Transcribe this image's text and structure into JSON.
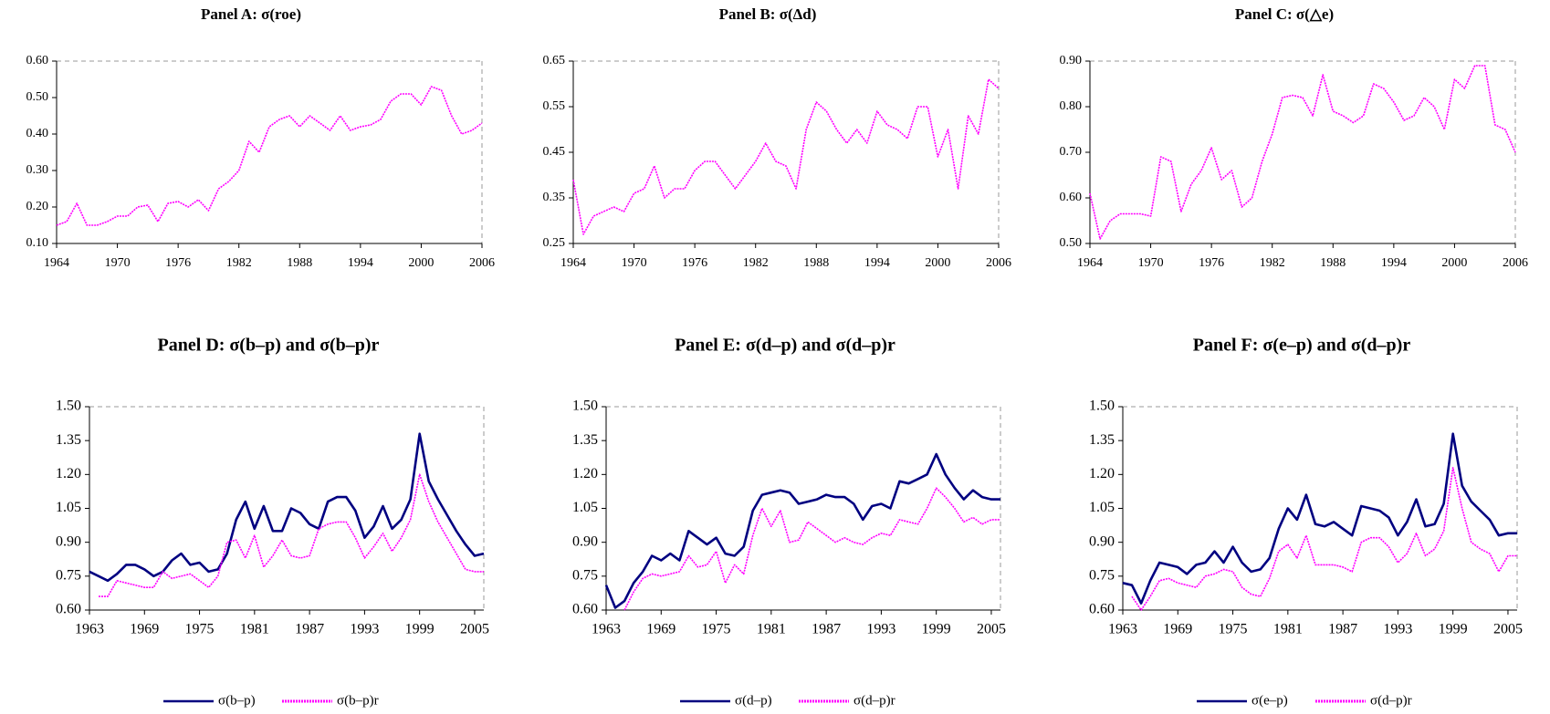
{
  "chart_data": [
    {
      "type": "line",
      "title": "Panel A: σ(roe)",
      "color": "#ff00ff",
      "dashed": true,
      "x": [
        1964,
        1965,
        1966,
        1967,
        1968,
        1969,
        1970,
        1971,
        1972,
        1973,
        1974,
        1975,
        1976,
        1977,
        1978,
        1979,
        1980,
        1981,
        1982,
        1983,
        1984,
        1985,
        1986,
        1987,
        1988,
        1989,
        1990,
        1991,
        1992,
        1993,
        1994,
        1995,
        1996,
        1997,
        1998,
        1999,
        2000,
        2001,
        2002,
        2003,
        2004,
        2005,
        2006
      ],
      "values": [
        0.15,
        0.16,
        0.21,
        0.15,
        0.15,
        0.16,
        0.175,
        0.175,
        0.2,
        0.205,
        0.16,
        0.21,
        0.215,
        0.2,
        0.22,
        0.19,
        0.25,
        0.27,
        0.3,
        0.38,
        0.35,
        0.42,
        0.44,
        0.45,
        0.42,
        0.45,
        0.43,
        0.41,
        0.45,
        0.41,
        0.42,
        0.425,
        0.44,
        0.49,
        0.51,
        0.51,
        0.48,
        0.53,
        0.52,
        0.45,
        0.4,
        0.41,
        0.43
      ],
      "xlim": [
        1964,
        2006
      ],
      "xticks": [
        1964,
        1970,
        1976,
        1982,
        1988,
        1994,
        2000,
        2006
      ],
      "ylim": [
        0.1,
        0.6
      ],
      "yticks": [
        {
          "value": 0.1,
          "label": "0.10"
        },
        {
          "value": 0.2,
          "label": "0.20"
        },
        {
          "value": 0.3,
          "label": "0.30"
        },
        {
          "value": 0.4,
          "label": "0.40"
        },
        {
          "value": 0.5,
          "label": "0.50"
        },
        {
          "value": 0.6,
          "label": "0.60"
        }
      ]
    },
    {
      "type": "line",
      "title": "Panel B: σ(Δd)",
      "color": "#ff00ff",
      "dashed": true,
      "x": [
        1964,
        1965,
        1966,
        1967,
        1968,
        1969,
        1970,
        1971,
        1972,
        1973,
        1974,
        1975,
        1976,
        1977,
        1978,
        1979,
        1980,
        1981,
        1982,
        1983,
        1984,
        1985,
        1986,
        1987,
        1988,
        1989,
        1990,
        1991,
        1992,
        1993,
        1994,
        1995,
        1996,
        1997,
        1998,
        1999,
        2000,
        2001,
        2002,
        2003,
        2004,
        2005,
        2006
      ],
      "values": [
        0.39,
        0.27,
        0.31,
        0.32,
        0.33,
        0.32,
        0.36,
        0.37,
        0.42,
        0.35,
        0.37,
        0.37,
        0.41,
        0.43,
        0.43,
        0.4,
        0.37,
        0.4,
        0.43,
        0.47,
        0.43,
        0.42,
        0.37,
        0.5,
        0.56,
        0.54,
        0.5,
        0.47,
        0.5,
        0.47,
        0.54,
        0.51,
        0.5,
        0.48,
        0.55,
        0.55,
        0.44,
        0.5,
        0.37,
        0.53,
        0.49,
        0.61,
        0.59
      ],
      "xlim": [
        1964,
        2006
      ],
      "xticks": [
        1964,
        1970,
        1976,
        1982,
        1988,
        1994,
        2000,
        2006
      ],
      "ylim": [
        0.25,
        0.65
      ],
      "yticks": [
        0.25,
        0.35,
        0.45,
        0.55,
        0.65
      ]
    },
    {
      "type": "line",
      "title": "Panel C: σ(△e)",
      "color": "#ff00ff",
      "dashed": true,
      "x": [
        1964,
        1965,
        1966,
        1967,
        1968,
        1969,
        1970,
        1971,
        1972,
        1973,
        1974,
        1975,
        1976,
        1977,
        1978,
        1979,
        1980,
        1981,
        1982,
        1983,
        1984,
        1985,
        1986,
        1987,
        1988,
        1989,
        1990,
        1991,
        1992,
        1993,
        1994,
        1995,
        1996,
        1997,
        1998,
        1999,
        2000,
        2001,
        2002,
        2003,
        2004,
        2005,
        2006
      ],
      "values": [
        0.61,
        0.51,
        0.55,
        0.565,
        0.565,
        0.565,
        0.56,
        0.69,
        0.68,
        0.57,
        0.63,
        0.66,
        0.71,
        0.64,
        0.66,
        0.58,
        0.6,
        0.68,
        0.74,
        0.82,
        0.825,
        0.82,
        0.78,
        0.87,
        0.79,
        0.78,
        0.765,
        0.78,
        0.85,
        0.84,
        0.81,
        0.77,
        0.78,
        0.82,
        0.8,
        0.75,
        0.86,
        0.84,
        0.89,
        0.89,
        0.76,
        0.75,
        0.7
      ],
      "xlim": [
        1964,
        2006
      ],
      "xticks": [
        1964,
        1970,
        1976,
        1982,
        1988,
        1994,
        2000,
        2006
      ],
      "ylim": [
        0.5,
        0.9
      ],
      "yticks": [
        {
          "value": 0.5,
          "label": "0.50"
        },
        {
          "value": 0.6,
          "label": "0.60"
        },
        {
          "value": 0.7,
          "label": "0.70"
        },
        {
          "value": 0.8,
          "label": "0.80"
        },
        {
          "value": 0.9,
          "label": "0.90"
        }
      ]
    },
    {
      "type": "line",
      "title": "Panel D: σ(b–p) and σ(b–p)r",
      "legend": "bottom",
      "x": [
        1963,
        1964,
        1965,
        1966,
        1967,
        1968,
        1969,
        1970,
        1971,
        1972,
        1973,
        1974,
        1975,
        1976,
        1977,
        1978,
        1979,
        1980,
        1981,
        1982,
        1983,
        1984,
        1985,
        1986,
        1987,
        1988,
        1989,
        1990,
        1991,
        1992,
        1993,
        1994,
        1995,
        1996,
        1997,
        1998,
        1999,
        2000,
        2001,
        2002,
        2003,
        2004,
        2005,
        2006
      ],
      "series": [
        {
          "name": "σ(b–p)",
          "color": "#000080",
          "values": [
            0.77,
            0.75,
            0.73,
            0.76,
            0.8,
            0.8,
            0.78,
            0.75,
            0.77,
            0.82,
            0.85,
            0.8,
            0.81,
            0.77,
            0.78,
            0.85,
            1.0,
            1.08,
            0.96,
            1.06,
            0.95,
            0.95,
            1.05,
            1.03,
            0.98,
            0.96,
            1.08,
            1.1,
            1.1,
            1.04,
            0.92,
            0.97,
            1.06,
            0.96,
            1.0,
            1.09,
            1.38,
            1.17,
            1.09,
            1.02,
            0.95,
            0.89,
            0.84,
            0.85
          ]
        },
        {
          "name": "σ(b–p)r",
          "color": "#ff00ff",
          "dashed": true,
          "values": [
            null,
            0.66,
            0.66,
            0.73,
            0.72,
            0.71,
            0.7,
            0.7,
            0.77,
            0.74,
            0.75,
            0.76,
            0.73,
            0.7,
            0.75,
            0.9,
            0.91,
            0.83,
            0.93,
            0.79,
            0.84,
            0.91,
            0.84,
            0.83,
            0.84,
            0.96,
            0.98,
            0.99,
            0.99,
            0.92,
            0.83,
            0.88,
            0.94,
            0.86,
            0.92,
            1.0,
            1.2,
            1.08,
            0.99,
            0.92,
            0.85,
            0.78,
            0.77,
            0.77
          ]
        }
      ],
      "xlim": [
        1963,
        2006
      ],
      "xticks": [
        1963,
        1969,
        1975,
        1981,
        1987,
        1993,
        1999,
        2005
      ],
      "ylim": [
        0.6,
        1.5
      ],
      "yticks": [
        {
          "value": 0.6,
          "label": "0.60"
        },
        0.75,
        {
          "value": 0.9,
          "label": "0.90"
        },
        1.05,
        {
          "value": 1.2,
          "label": "1.20"
        },
        1.35,
        {
          "value": 1.5,
          "label": "1.50"
        }
      ]
    },
    {
      "type": "line",
      "title": "Panel E: σ(d–p) and σ(d–p)r",
      "legend": "bottom",
      "x": [
        1963,
        1964,
        1965,
        1966,
        1967,
        1968,
        1969,
        1970,
        1971,
        1972,
        1973,
        1974,
        1975,
        1976,
        1977,
        1978,
        1979,
        1980,
        1981,
        1982,
        1983,
        1984,
        1985,
        1986,
        1987,
        1988,
        1989,
        1990,
        1991,
        1992,
        1993,
        1994,
        1995,
        1996,
        1997,
        1998,
        1999,
        2000,
        2001,
        2002,
        2003,
        2004,
        2005,
        2006
      ],
      "series": [
        {
          "name": "σ(d–p)",
          "color": "#000080",
          "values": [
            0.71,
            0.61,
            0.64,
            0.72,
            0.77,
            0.84,
            0.82,
            0.85,
            0.82,
            0.95,
            0.92,
            0.89,
            0.92,
            0.85,
            0.84,
            0.88,
            1.04,
            1.11,
            1.12,
            1.13,
            1.12,
            1.07,
            1.08,
            1.09,
            1.11,
            1.1,
            1.1,
            1.07,
            1.0,
            1.06,
            1.07,
            1.05,
            1.17,
            1.16,
            1.18,
            1.2,
            1.29,
            1.2,
            1.14,
            1.09,
            1.13,
            1.1,
            1.09,
            1.09
          ]
        },
        {
          "name": "σ(d–p)r",
          "color": "#ff00ff",
          "dashed": true,
          "values": [
            null,
            null,
            0.6,
            0.68,
            0.74,
            0.76,
            0.75,
            0.76,
            0.77,
            0.84,
            0.79,
            0.8,
            0.86,
            0.72,
            0.8,
            0.76,
            0.93,
            1.05,
            0.97,
            1.04,
            0.9,
            0.91,
            0.99,
            0.96,
            0.93,
            0.9,
            0.92,
            0.9,
            0.89,
            0.92,
            0.94,
            0.93,
            1.0,
            0.99,
            0.98,
            1.05,
            1.14,
            1.1,
            1.05,
            0.99,
            1.01,
            0.98,
            1.0,
            1.0
          ]
        }
      ],
      "xlim": [
        1963,
        2006
      ],
      "xticks": [
        1963,
        1969,
        1975,
        1981,
        1987,
        1993,
        1999,
        2005
      ],
      "ylim": [
        0.6,
        1.5
      ],
      "yticks": [
        {
          "value": 0.6,
          "label": "0.60"
        },
        0.75,
        {
          "value": 0.9,
          "label": "0.90"
        },
        1.05,
        {
          "value": 1.2,
          "label": "1.20"
        },
        1.35,
        {
          "value": 1.5,
          "label": "1.50"
        }
      ]
    },
    {
      "type": "line",
      "title": "Panel F: σ(e–p) and σ(d–p)r",
      "legend": "bottom",
      "x": [
        1963,
        1964,
        1965,
        1966,
        1967,
        1968,
        1969,
        1970,
        1971,
        1972,
        1973,
        1974,
        1975,
        1976,
        1977,
        1978,
        1979,
        1980,
        1981,
        1982,
        1983,
        1984,
        1985,
        1986,
        1987,
        1988,
        1989,
        1990,
        1991,
        1992,
        1993,
        1994,
        1995,
        1996,
        1997,
        1998,
        1999,
        2000,
        2001,
        2002,
        2003,
        2004,
        2005,
        2006
      ],
      "series": [
        {
          "name": "σ(e–p)",
          "color": "#000080",
          "values": [
            0.72,
            0.71,
            0.63,
            0.73,
            0.81,
            0.8,
            0.79,
            0.76,
            0.8,
            0.81,
            0.86,
            0.81,
            0.88,
            0.81,
            0.77,
            0.78,
            0.83,
            0.96,
            1.05,
            1.0,
            1.11,
            0.98,
            0.97,
            0.99,
            0.96,
            0.93,
            1.06,
            1.05,
            1.04,
            1.01,
            0.93,
            0.99,
            1.09,
            0.97,
            0.98,
            1.07,
            1.38,
            1.15,
            1.08,
            1.04,
            1.0,
            0.93,
            0.94,
            0.94
          ]
        },
        {
          "name": "σ(d–p)r",
          "color": "#ff00ff",
          "dashed": true,
          "values": [
            null,
            0.66,
            0.6,
            0.66,
            0.73,
            0.74,
            0.72,
            0.71,
            0.7,
            0.75,
            0.76,
            0.78,
            0.77,
            0.7,
            0.67,
            0.66,
            0.74,
            0.86,
            0.89,
            0.83,
            0.93,
            0.8,
            0.8,
            0.8,
            0.79,
            0.77,
            0.9,
            0.92,
            0.92,
            0.88,
            0.81,
            0.85,
            0.94,
            0.84,
            0.87,
            0.95,
            1.23,
            1.05,
            0.9,
            0.87,
            0.85,
            0.77,
            0.84,
            0.84
          ]
        }
      ],
      "xlim": [
        1963,
        2006
      ],
      "xticks": [
        1963,
        1969,
        1975,
        1981,
        1987,
        1993,
        1999,
        2005
      ],
      "ylim": [
        0.6,
        1.5
      ],
      "yticks": [
        {
          "value": 0.6,
          "label": "0.60"
        },
        0.75,
        {
          "value": 0.9,
          "label": "0.90"
        },
        1.05,
        {
          "value": 1.2,
          "label": "1.20"
        },
        1.35,
        {
          "value": 1.5,
          "label": "1.50"
        }
      ]
    }
  ]
}
